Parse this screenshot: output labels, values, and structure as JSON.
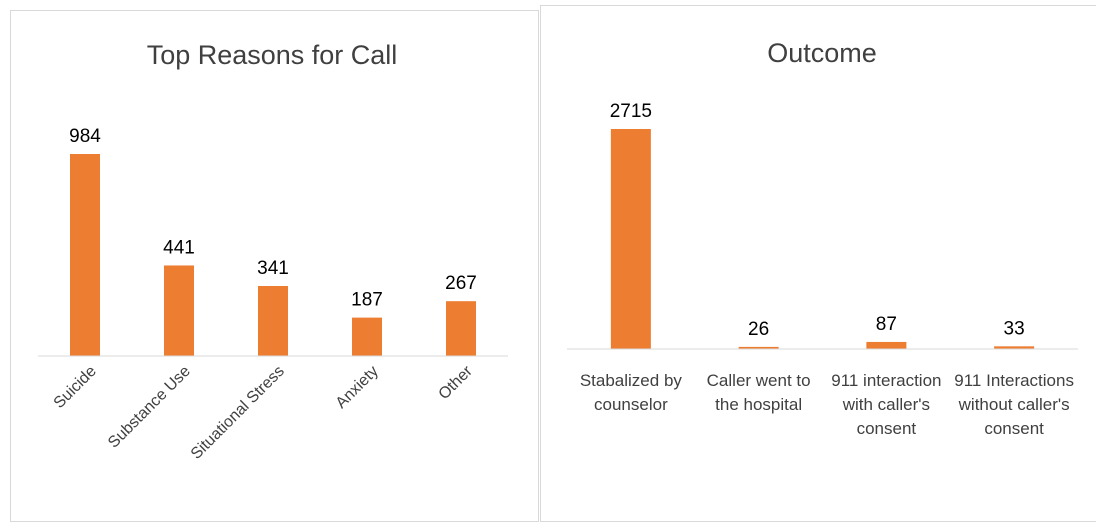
{
  "chart_data": [
    {
      "type": "bar",
      "title": "Top Reasons for Call",
      "categories": [
        "Suicide",
        "Substance Use",
        "Situational Stress",
        "Anxiety",
        "Other"
      ],
      "values": [
        984,
        441,
        341,
        187,
        267
      ],
      "color": "#ed7d31"
    },
    {
      "type": "bar",
      "title": "Outcome",
      "categories": [
        "Stabalized by counselor",
        "Caller went to the hospital",
        "911 interaction with caller's consent",
        "911 Interactions without caller's consent"
      ],
      "values": [
        2715,
        26,
        87,
        33
      ],
      "color": "#ed7d31"
    }
  ]
}
